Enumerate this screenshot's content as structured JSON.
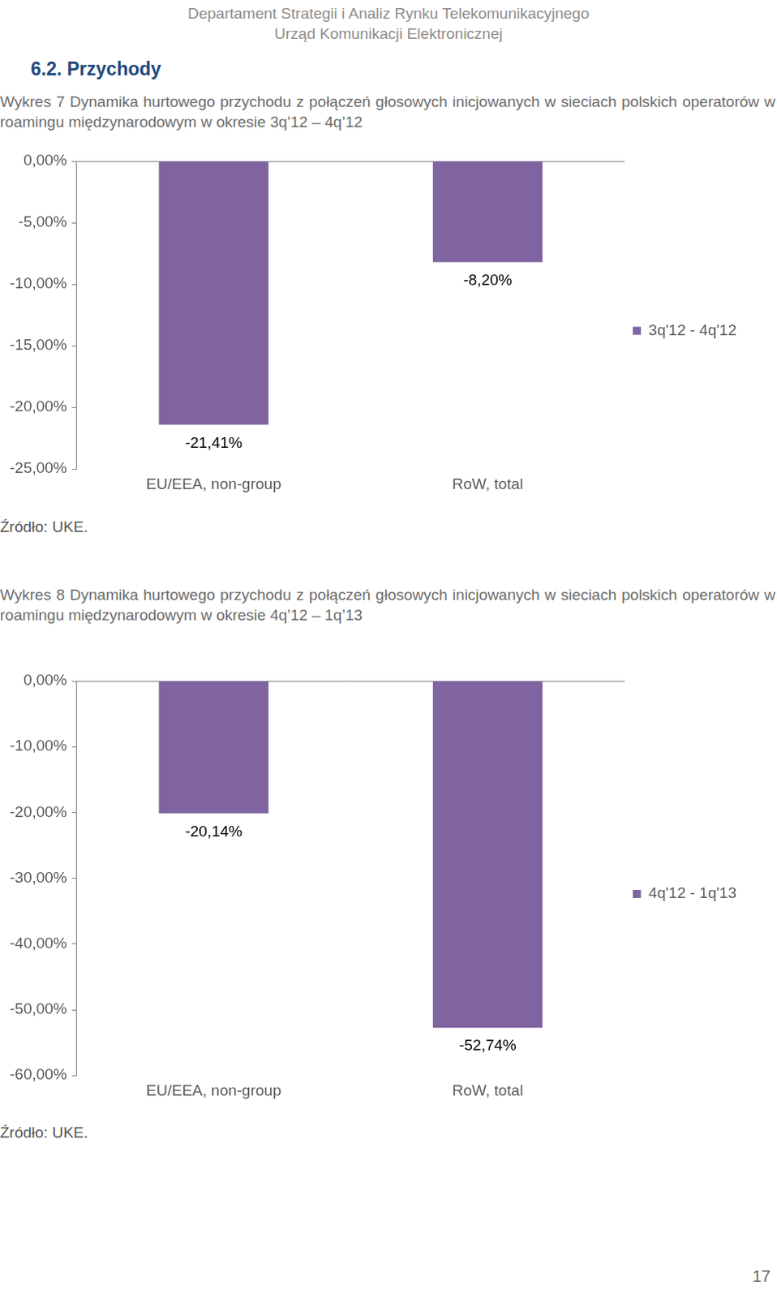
{
  "header": [
    "Departament Strategii i Analiz Rynku Telekomunikacyjnego",
    "Urząd Komunikacji Elektronicznej"
  ],
  "section": "6.2. Przychody",
  "page_number": 17,
  "chart_data": [
    {
      "type": "bar",
      "title": "Wykres 7 Dynamika hurtowego przychodu z połączeń głosowych inicjowanych w sieciach polskich operatorów w roamingu międzynarodowym w okresie 3q’12 – 4q’12",
      "categories": [
        "EU/EEA, non-group",
        "RoW, total"
      ],
      "series": [
        {
          "name": "3q'12 - 4q'12",
          "color": "#8064a2",
          "values": [
            -21.41,
            -8.2
          ],
          "value_labels": [
            "-21,41%",
            "-8,20%"
          ]
        }
      ],
      "ylim": [
        -25,
        0
      ],
      "yticks": [
        {
          "value": -25,
          "label": "-25,00%"
        },
        {
          "value": -20,
          "label": "-20,00%"
        },
        {
          "value": -15,
          "label": "-15,00%"
        },
        {
          "value": -10,
          "label": "-10,00%"
        },
        {
          "value": -5,
          "label": "-5,00%"
        },
        {
          "value": 0,
          "label": "0,00%"
        }
      ],
      "grid": false,
      "legend": "right",
      "data_labels": true,
      "source": "Źródło: UKE."
    },
    {
      "type": "bar",
      "title": "Wykres 8 Dynamika hurtowego przychodu z połączeń głosowych inicjowanych w sieciach polskich operatorów w roamingu międzynarodowym w okresie 4q’12 – 1q’13",
      "categories": [
        "EU/EEA, non-group",
        "RoW, total"
      ],
      "series": [
        {
          "name": "4q'12 - 1q'13",
          "color": "#8064a2",
          "values": [
            -20.14,
            -52.74
          ],
          "value_labels": [
            "-20,14%",
            "-52,74%"
          ]
        }
      ],
      "ylim": [
        -60,
        0
      ],
      "yticks": [
        {
          "value": -60,
          "label": "-60,00%"
        },
        {
          "value": -50,
          "label": "-50,00%"
        },
        {
          "value": -40,
          "label": "-40,00%"
        },
        {
          "value": -30,
          "label": "-30,00%"
        },
        {
          "value": -20,
          "label": "-20,00%"
        },
        {
          "value": -10,
          "label": "-10,00%"
        },
        {
          "value": 0,
          "label": "0,00%"
        }
      ],
      "grid": false,
      "legend": "right",
      "data_labels": true,
      "source": "Źródło: UKE."
    }
  ]
}
